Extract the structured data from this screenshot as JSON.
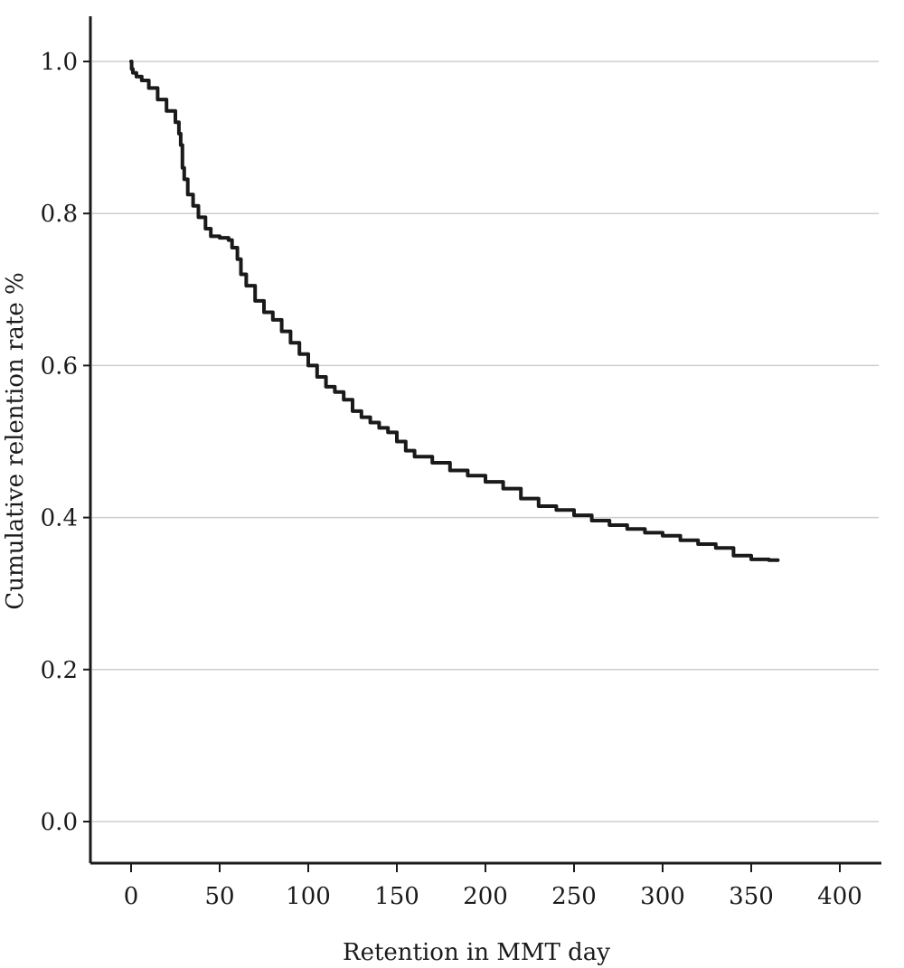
{
  "chart_data": {
    "type": "line",
    "title": "",
    "xlabel": "Retention in MMT day",
    "ylabel": "Cumulative relention rate %",
    "xlim": [
      -10,
      420
    ],
    "ylim": [
      -0.05,
      1.05
    ],
    "xticks": [
      0,
      50,
      100,
      150,
      200,
      250,
      300,
      350,
      400
    ],
    "xtick_labels": [
      "0",
      "50",
      "100",
      "150",
      "200",
      "250",
      "300",
      "350",
      "400"
    ],
    "yticks": [
      0.0,
      0.2,
      0.4,
      0.6,
      0.8,
      1.0
    ],
    "ytick_labels": [
      "0.0",
      "0.2",
      "0.4",
      "0.6",
      "0.8",
      "1.0"
    ],
    "grid": "horizontal",
    "legend": "none",
    "step": true,
    "colors": {
      "line": "#1a1a1a",
      "grid": "#c9cfcf",
      "axis": "#1a1a1a"
    },
    "series": [
      {
        "x": [
          0,
          0.3,
          1,
          3,
          6,
          10,
          15,
          20,
          25,
          27,
          28,
          29,
          30,
          32,
          35,
          38,
          42,
          45,
          50,
          55,
          57,
          60,
          62,
          65,
          70,
          75,
          80,
          85,
          90,
          95,
          100,
          105,
          110,
          115,
          120,
          125,
          130,
          135,
          140,
          145,
          150,
          155,
          160,
          170,
          180,
          190,
          200,
          210,
          220,
          230,
          240,
          250,
          260,
          270,
          280,
          290,
          300,
          310,
          320,
          330,
          340,
          350,
          360,
          365
        ],
        "y": [
          1.0,
          0.99,
          0.985,
          0.98,
          0.975,
          0.965,
          0.95,
          0.935,
          0.92,
          0.905,
          0.89,
          0.86,
          0.845,
          0.825,
          0.81,
          0.795,
          0.78,
          0.77,
          0.768,
          0.765,
          0.755,
          0.74,
          0.72,
          0.705,
          0.685,
          0.67,
          0.66,
          0.645,
          0.63,
          0.615,
          0.6,
          0.585,
          0.572,
          0.565,
          0.555,
          0.54,
          0.532,
          0.525,
          0.518,
          0.512,
          0.5,
          0.488,
          0.48,
          0.472,
          0.462,
          0.455,
          0.447,
          0.438,
          0.425,
          0.415,
          0.41,
          0.403,
          0.396,
          0.39,
          0.385,
          0.38,
          0.376,
          0.37,
          0.365,
          0.36,
          0.35,
          0.345,
          0.344,
          0.344
        ]
      }
    ]
  }
}
